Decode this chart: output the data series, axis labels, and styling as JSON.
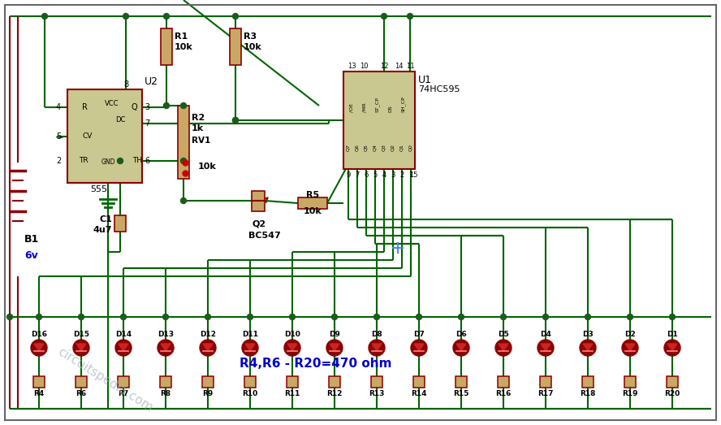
{
  "bg_color": "#ffffff",
  "wc": "#006400",
  "wc2": "#8B0000",
  "dc": "#1a5c1a",
  "ic_fill": "#C8C890",
  "ic_border": "#8B0000",
  "res_fill": "#C8A864",
  "res_border": "#8B0000",
  "led_dark": "#8B0000",
  "led_inner": "#CC2222",
  "text_col": "#000000",
  "blue_col": "#0000CC",
  "gray_col": "#888899",
  "border_col": "#666666",
  "title": "R4,R6 - R20=470 ohm",
  "watermark": "circuitspedia.com",
  "r_labels": [
    "R4",
    "R6",
    "R7",
    "R8",
    "R9",
    "R10",
    "R11",
    "R12",
    "R13",
    "R14",
    "R15",
    "R16",
    "R17",
    "R18",
    "R19",
    "R20"
  ],
  "d_labels": [
    "D16",
    "D15",
    "D14",
    "D13",
    "D12",
    "D11",
    "D10",
    "D9",
    "D8",
    "D7",
    "D6",
    "D5",
    "D4",
    "D3",
    "D2",
    "D1"
  ]
}
